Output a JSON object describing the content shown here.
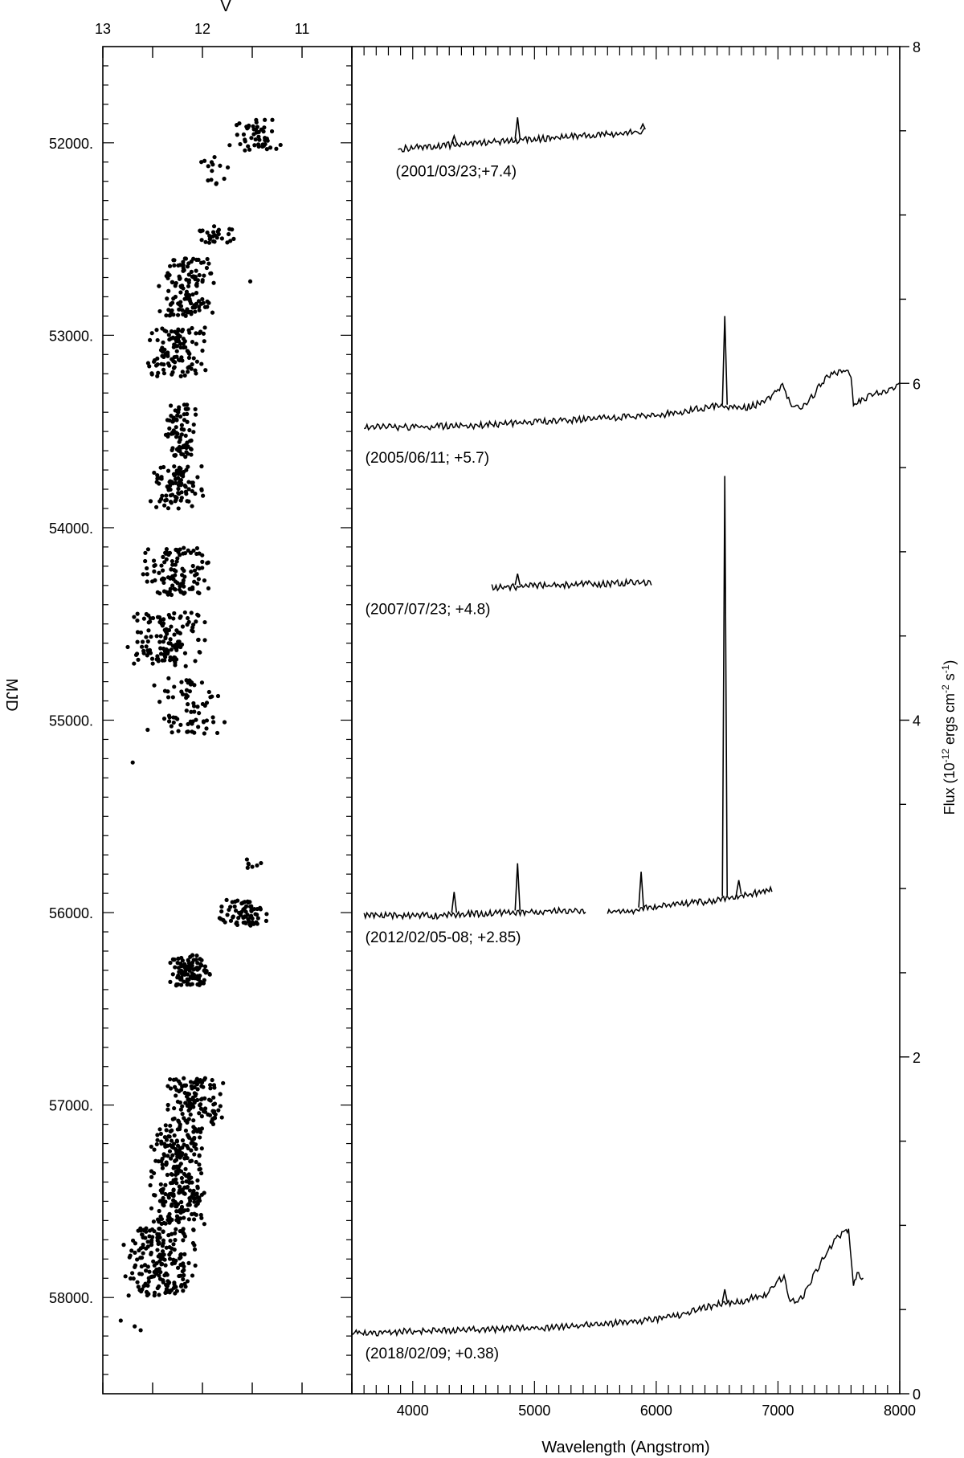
{
  "chart_data": [
    {
      "type": "scatter",
      "xlabel": "V",
      "ylabel": "MJD",
      "xlim": [
        13,
        10.5
      ],
      "ylim": [
        51500,
        58500
      ],
      "x_ticks": [
        "13",
        "12",
        "11"
      ],
      "y_ticks": [
        "52000.",
        "53000.",
        "54000.",
        "55000.",
        "56000.",
        "57000.",
        "58000."
      ],
      "grid": false,
      "clusters": [
        {
          "mjd": [
            51880,
            52040
          ],
          "v": [
            11.1,
            11.8
          ],
          "n": 50
        },
        {
          "mjd": [
            52050,
            52250
          ],
          "v": [
            11.7,
            12.1
          ],
          "n": 14
        },
        {
          "mjd": [
            52430,
            52520
          ],
          "v": [
            11.65,
            12.1
          ],
          "n": 28
        },
        {
          "mjd": [
            52600,
            52900
          ],
          "v": [
            11.85,
            12.45
          ],
          "n": 130
        },
        {
          "mjd": [
            52960,
            53220
          ],
          "v": [
            11.95,
            12.6
          ],
          "n": 110
        },
        {
          "mjd": [
            53360,
            53640
          ],
          "v": [
            12.05,
            12.4
          ],
          "n": 80
        },
        {
          "mjd": [
            53680,
            53900
          ],
          "v": [
            11.95,
            12.55
          ],
          "n": 90
        },
        {
          "mjd": [
            54100,
            54350
          ],
          "v": [
            11.9,
            12.65
          ],
          "n": 110
        },
        {
          "mjd": [
            54440,
            54720
          ],
          "v": [
            11.95,
            12.75
          ],
          "n": 130
        },
        {
          "mjd": [
            54780,
            55070
          ],
          "v": [
            11.75,
            12.5
          ],
          "n": 70
        },
        {
          "mjd": [
            55700,
            55770
          ],
          "v": [
            11.35,
            11.6
          ],
          "n": 7
        },
        {
          "mjd": [
            55930,
            56070
          ],
          "v": [
            11.3,
            11.85
          ],
          "n": 70
        },
        {
          "mjd": [
            56220,
            56380
          ],
          "v": [
            11.9,
            12.35
          ],
          "n": 110
        },
        {
          "mjd": [
            56860,
            57100
          ],
          "v": [
            11.75,
            12.4
          ],
          "n": 120
        },
        {
          "mjd": [
            57100,
            57620
          ],
          "v": [
            11.95,
            12.55
          ],
          "n": 260
        },
        {
          "mjd": [
            57640,
            57990
          ],
          "v": [
            12.0,
            12.85
          ],
          "n": 200
        }
      ],
      "points": [
        [
          12.82,
          58120
        ],
        [
          12.68,
          58150
        ],
        [
          12.62,
          58170
        ],
        [
          12.7,
          55220
        ],
        [
          11.52,
          52720
        ],
        [
          12.0,
          53080
        ],
        [
          12.75,
          54620
        ],
        [
          12.55,
          55050
        ]
      ]
    },
    {
      "type": "line",
      "xlabel": "Wavelength (Angstrom)",
      "ylabel": "Flux (10⁻¹² ergs cm⁻² s⁻¹)",
      "ylabel_parts": {
        "pre": "Flux (10",
        "exp1": "-12",
        "mid1": " ergs cm",
        "exp2": "-2",
        "mid2": " s",
        "exp3": "-1",
        "post": ")"
      },
      "xlim": [
        3500,
        8000
      ],
      "ylim": [
        0,
        8
      ],
      "x_ticks": [
        "4000",
        "5000",
        "6000",
        "7000",
        "8000"
      ],
      "y_ticks": [
        "0",
        "2",
        "4",
        "6",
        "8"
      ],
      "grid": false,
      "series": [
        {
          "name": "(2001/03/23;+7.4)",
          "offset": 7.4,
          "x": [
            3880,
            4000,
            4200,
            4400,
            4600,
            4800,
            5000,
            5200,
            5400,
            5600,
            5800,
            5900
          ],
          "y": [
            7.4,
            7.41,
            7.42,
            7.43,
            7.44,
            7.45,
            7.46,
            7.47,
            7.48,
            7.49,
            7.5,
            7.51
          ]
        },
        {
          "name": "(2005/06/11; +5.7)",
          "offset": 5.7,
          "x": [
            3600,
            4000,
            4500,
            5000,
            5500,
            6000,
            6200,
            6500,
            6700,
            6900,
            7000,
            7050,
            7100,
            7200,
            7300,
            7400,
            7500,
            7550,
            7600,
            7620,
            7700,
            7800,
            7900,
            8000
          ],
          "y": [
            5.75,
            5.75,
            5.76,
            5.78,
            5.8,
            5.82,
            5.84,
            5.88,
            5.86,
            5.9,
            5.98,
            6.0,
            5.88,
            5.86,
            5.95,
            6.05,
            6.08,
            6.09,
            6.06,
            5.88,
            5.92,
            5.95,
            5.97,
            6.0
          ]
        },
        {
          "name": "(2007/07/23; +4.8)",
          "offset": 4.8,
          "x": [
            4650,
            4800,
            5000,
            5200,
            5400,
            5600,
            5800,
            5960
          ],
          "y": [
            4.8,
            4.8,
            4.81,
            4.81,
            4.82,
            4.82,
            4.83,
            4.83
          ]
        },
        {
          "name": "(2012/02/05-08; +2.85)",
          "offset": 2.85,
          "x": [
            3600,
            3800,
            4000,
            4200,
            4400,
            4600,
            4800,
            5000,
            5200,
            5420
          ],
          "y": [
            2.85,
            2.85,
            2.85,
            2.85,
            2.86,
            2.86,
            2.87,
            2.87,
            2.88,
            2.88
          ]
        },
        {
          "name": "",
          "offset": 2.85,
          "x": [
            5600,
            5800,
            6000,
            6200,
            6400,
            6600,
            6800,
            6950
          ],
          "y": [
            2.87,
            2.88,
            2.9,
            2.92,
            2.93,
            2.96,
            2.98,
            3.0
          ]
        },
        {
          "name": "(2018/02/09; +0.38)",
          "offset": 0.38,
          "x": [
            3500,
            4000,
            4500,
            5000,
            5500,
            6000,
            6200,
            6500,
            6700,
            6900,
            7000,
            7050,
            7100,
            7200,
            7300,
            7400,
            7500,
            7550,
            7580,
            7620,
            7650,
            7700
          ],
          "y": [
            0.37,
            0.38,
            0.39,
            0.4,
            0.42,
            0.45,
            0.48,
            0.54,
            0.56,
            0.6,
            0.68,
            0.7,
            0.56,
            0.58,
            0.72,
            0.85,
            0.95,
            0.97,
            0.98,
            0.64,
            0.72,
            0.7
          ]
        }
      ],
      "annotations": [
        {
          "text": "(2001/03/23;+7.4)",
          "x": 3860,
          "y": 7.23
        },
        {
          "text": "(2005/06/11; +5.7)",
          "x": 3610,
          "y": 5.53
        },
        {
          "text": "(2007/07/23; +4.8)",
          "x": 3610,
          "y": 4.63
        },
        {
          "text": "(2012/02/05-08; +2.85)",
          "x": 3610,
          "y": 2.68
        },
        {
          "text": "(2018/02/09; +0.38)",
          "x": 3610,
          "y": 0.21
        }
      ],
      "emission_lines": [
        {
          "wavelength": 6563,
          "series": 1,
          "peak": 6.4
        },
        {
          "wavelength": 6563,
          "series": 4,
          "peak": 5.45
        },
        {
          "wavelength": 6563,
          "series": 5,
          "peak": 0.62
        },
        {
          "wavelength": 4861,
          "series": 0,
          "peak": 7.58
        },
        {
          "wavelength": 4861,
          "series": 3,
          "peak": 3.15
        },
        {
          "wavelength": 5876,
          "series": 4,
          "peak": 3.1
        },
        {
          "wavelength": 4340,
          "series": 0,
          "peak": 7.47
        },
        {
          "wavelength": 4340,
          "series": 3,
          "peak": 2.98
        },
        {
          "wavelength": 6678,
          "series": 4,
          "peak": 3.05
        },
        {
          "wavelength": 4861,
          "series": 2,
          "peak": 4.87
        },
        {
          "wavelength": 5890,
          "series": 0,
          "peak": 7.54
        }
      ]
    }
  ]
}
